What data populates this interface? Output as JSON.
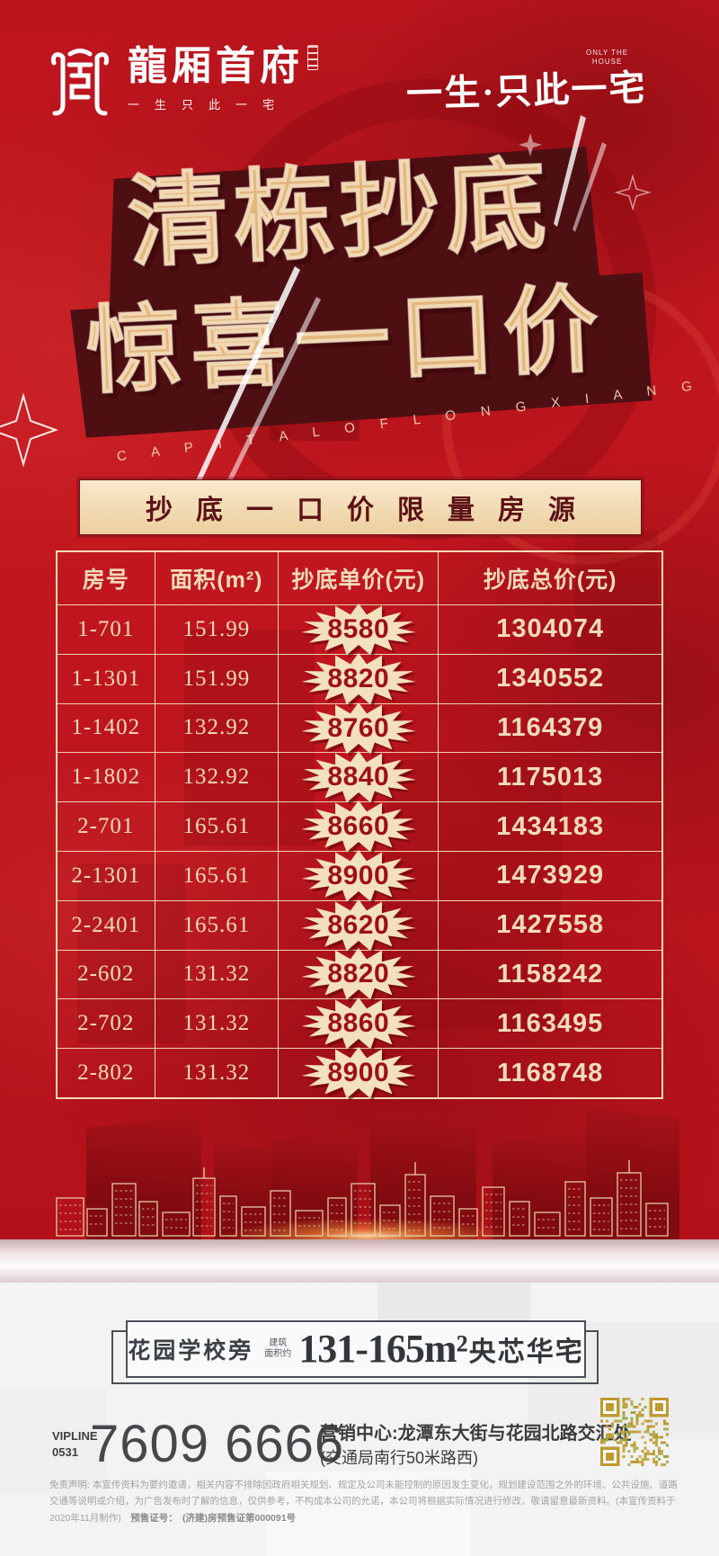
{
  "brand": {
    "logo_text": "龍厢首府",
    "logo_tagline": "一生只此一宅",
    "slogan_main": "一生·只此一宅",
    "slogan_sub1": "ONLY THE",
    "slogan_sub2": "HOUSE"
  },
  "hero": {
    "title_line1": "清栋抄底",
    "title_line2": "惊喜一口价",
    "subtitle_en": "C A P I T A L   O F   L O N G X I A N G",
    "banner": "抄底一口价限量房源"
  },
  "table": {
    "headers": [
      "房号",
      "面积(m²)",
      "抄底单价(元)",
      "抄底总价(元)"
    ],
    "rows": [
      {
        "room": "1-701",
        "area": "151.99",
        "unit_price": "8580",
        "total_price": "1304074"
      },
      {
        "room": "1-1301",
        "area": "151.99",
        "unit_price": "8820",
        "total_price": "1340552"
      },
      {
        "room": "1-1402",
        "area": "132.92",
        "unit_price": "8760",
        "total_price": "1164379"
      },
      {
        "room": "1-1802",
        "area": "132.92",
        "unit_price": "8840",
        "total_price": "1175013"
      },
      {
        "room": "2-701",
        "area": "165.61",
        "unit_price": "8660",
        "total_price": "1434183"
      },
      {
        "room": "2-1301",
        "area": "165.61",
        "unit_price": "8900",
        "total_price": "1473929"
      },
      {
        "room": "2-2401",
        "area": "165.61",
        "unit_price": "8620",
        "total_price": "1427558"
      },
      {
        "room": "2-602",
        "area": "131.32",
        "unit_price": "8820",
        "total_price": "1158242"
      },
      {
        "room": "2-702",
        "area": "131.32",
        "unit_price": "8860",
        "total_price": "1163495"
      },
      {
        "room": "2-802",
        "area": "131.32",
        "unit_price": "8900",
        "total_price": "1168748"
      }
    ]
  },
  "footer": {
    "location_label": "花园学校旁",
    "area_small1": "建筑",
    "area_small2": "面积约",
    "area_range": "131-165m²",
    "area_suffix": "央芯华宅",
    "vipline_label": "VIPLINE",
    "vipline_code": "0531",
    "phone": "7609 6666",
    "address_line1": "营销中心:龙潭东大街与花园北路交汇处",
    "address_line2": "(交通局南行50米路西)",
    "disclaimer": "免责声明: 本宣传资料为要约邀请，相关内容不排除因政府相关规划、规定及公司未能控制的原因发生变化，规划建设范围之外的环境、公共设施、道路交通等说明或介绍，为广告发布时了解的信息，仅供参考，不构成本公司的允诺，本公司将根据实际情况进行修改，敬请留意最新资料。(本宣传资料于2020年11月制作)　",
    "license_label": "预售证号：",
    "license_number": "(济建)房预售证第000091号"
  },
  "colors": {
    "red_bg": "#c0161f",
    "maroon_shadow": "#4e0f13",
    "gold_text": "#e3b67c",
    "cream": "#f0dcba",
    "burst_number_red": "#9e1016",
    "banner_text": "#5c1216",
    "qr_gold": "#bf9a30",
    "dark_gray_text": "#3c3c3e"
  }
}
